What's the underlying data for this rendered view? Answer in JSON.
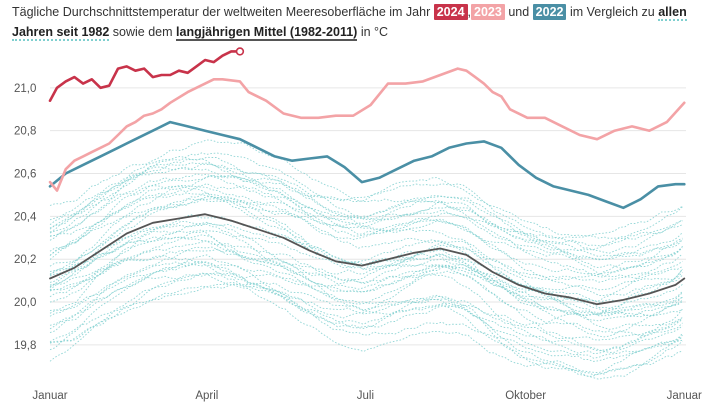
{
  "header": {
    "line1_prefix": "Tägliche Durchschnittstemperatur der weltweiten Meeresoberfläche im Jahr",
    "year_2024": "2024",
    "sep_comma": ",",
    "year_2023": "2023",
    "word_und": "und",
    "year_2022": "2022",
    "line1_suffix": "im Vergleich zu",
    "all_years_a": "allen",
    "all_years_b": "Jahren seit 1982",
    "word_sowie": "sowie dem",
    "longterm_mean": "langjährigen Mittel (1982-2011)",
    "unit": "in °C"
  },
  "colors": {
    "y2024": "#c8334a",
    "y2023": "#f3a3a6",
    "y2022": "#4a8fa5",
    "mean": "#555555",
    "background_years": "#7fcfcf"
  },
  "chart_data": {
    "type": "line",
    "xlabel": "",
    "ylabel": "",
    "xlim": [
      1,
      366
    ],
    "ylim": [
      19.72,
      21.2
    ],
    "y_ticks": [
      "19,8",
      "20,0",
      "20,2",
      "20,4",
      "20,6",
      "20,8",
      "21,0"
    ],
    "x_ticks": [
      {
        "day": 1,
        "label": "Januar"
      },
      {
        "day": 91,
        "label": "April"
      },
      {
        "day": 182,
        "label": "Juli"
      },
      {
        "day": 274,
        "label": "Oktober"
      },
      {
        "day": 365,
        "label": "Januar"
      }
    ],
    "grid": true,
    "series": [
      {
        "name": "2024",
        "role": "highlight",
        "x": [
          1,
          5,
          10,
          15,
          20,
          25,
          30,
          35,
          40,
          45,
          50,
          55,
          60,
          65,
          70,
          75,
          80,
          85,
          90,
          95,
          100,
          105,
          110
        ],
        "y": [
          20.94,
          21.0,
          21.03,
          21.05,
          21.02,
          21.04,
          21.0,
          21.01,
          21.09,
          21.1,
          21.08,
          21.09,
          21.05,
          21.06,
          21.06,
          21.08,
          21.07,
          21.1,
          21.13,
          21.12,
          21.15,
          21.17,
          21.17
        ]
      },
      {
        "name": "2023",
        "role": "highlight",
        "x": [
          1,
          5,
          10,
          15,
          20,
          25,
          30,
          35,
          40,
          45,
          50,
          55,
          60,
          65,
          70,
          80,
          90,
          95,
          100,
          110,
          115,
          125,
          135,
          145,
          155,
          165,
          175,
          185,
          195,
          205,
          215,
          225,
          235,
          240,
          245,
          250,
          255,
          260,
          265,
          275,
          285,
          295,
          305,
          315,
          325,
          335,
          345,
          355,
          365
        ],
        "y": [
          20.56,
          20.52,
          20.62,
          20.66,
          20.68,
          20.7,
          20.72,
          20.74,
          20.78,
          20.82,
          20.84,
          20.87,
          20.88,
          20.9,
          20.93,
          20.98,
          21.02,
          21.04,
          21.04,
          21.03,
          20.98,
          20.94,
          20.88,
          20.86,
          20.86,
          20.87,
          20.87,
          20.92,
          21.02,
          21.02,
          21.03,
          21.06,
          21.09,
          21.08,
          21.05,
          21.02,
          20.98,
          20.96,
          20.9,
          20.86,
          20.86,
          20.82,
          20.78,
          20.76,
          20.8,
          20.82,
          20.8,
          20.84,
          20.93
        ]
      },
      {
        "name": "2022",
        "role": "highlight",
        "x": [
          1,
          10,
          20,
          30,
          40,
          50,
          60,
          70,
          80,
          90,
          100,
          110,
          120,
          130,
          140,
          150,
          160,
          170,
          180,
          190,
          200,
          210,
          220,
          230,
          240,
          250,
          260,
          270,
          280,
          290,
          300,
          310,
          320,
          330,
          340,
          350,
          360,
          365
        ],
        "y": [
          20.54,
          20.6,
          20.64,
          20.68,
          20.72,
          20.76,
          20.8,
          20.84,
          20.82,
          20.8,
          20.78,
          20.76,
          20.72,
          20.68,
          20.66,
          20.67,
          20.68,
          20.63,
          20.56,
          20.58,
          20.62,
          20.66,
          20.68,
          20.72,
          20.74,
          20.75,
          20.72,
          20.64,
          20.58,
          20.54,
          20.52,
          20.5,
          20.47,
          20.44,
          20.48,
          20.54,
          20.55,
          20.55
        ]
      },
      {
        "name": "langjähriges Mittel (1982-2011)",
        "role": "mean",
        "x": [
          1,
          15,
          30,
          45,
          60,
          75,
          90,
          105,
          120,
          135,
          150,
          165,
          180,
          195,
          210,
          225,
          240,
          255,
          270,
          285,
          300,
          315,
          330,
          345,
          360,
          365
        ],
        "y": [
          20.11,
          20.16,
          20.24,
          20.32,
          20.37,
          20.39,
          20.41,
          20.38,
          20.34,
          20.3,
          20.24,
          20.19,
          20.17,
          20.2,
          20.23,
          20.25,
          20.22,
          20.14,
          20.08,
          20.04,
          20.02,
          19.99,
          20.01,
          20.04,
          20.08,
          20.11
        ]
      }
    ]
  }
}
